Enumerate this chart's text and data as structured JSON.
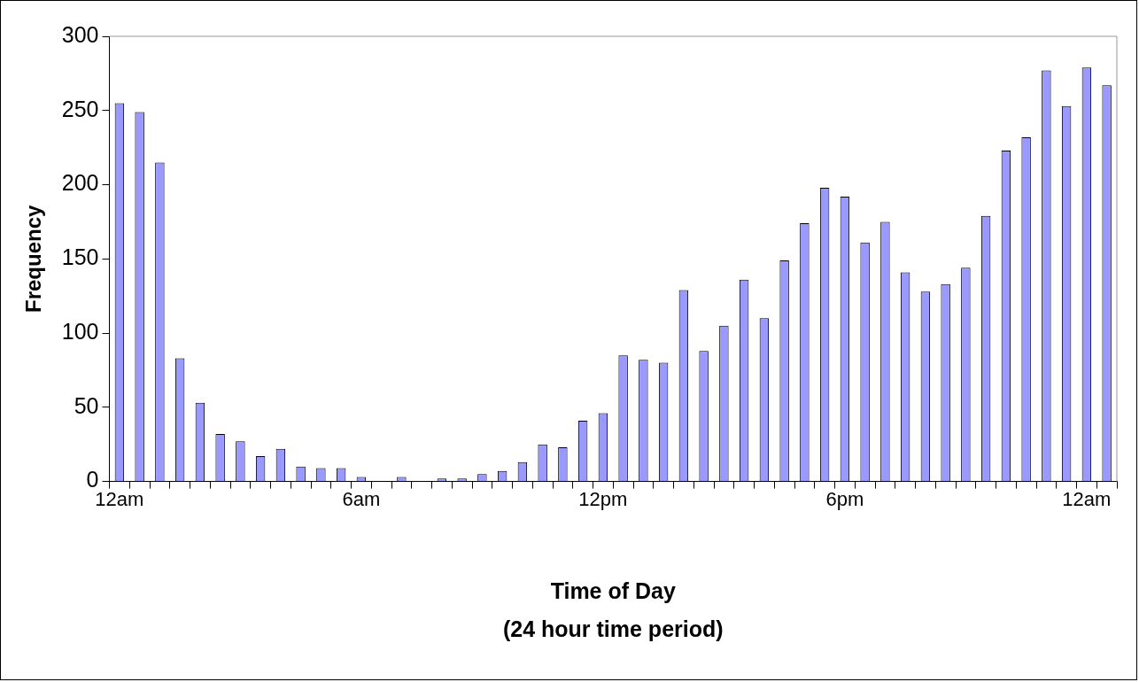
{
  "chart_data": {
    "type": "bar",
    "xlabel": "Time of Day\n(24 hour time period)",
    "ylabel": "Frequency",
    "categories": [
      "12am",
      null,
      null,
      null,
      null,
      null,
      null,
      null,
      null,
      null,
      null,
      null,
      "6am",
      null,
      null,
      null,
      null,
      null,
      null,
      null,
      null,
      null,
      null,
      null,
      "12pm",
      null,
      null,
      null,
      null,
      null,
      null,
      null,
      null,
      null,
      null,
      null,
      "6pm",
      null,
      null,
      null,
      null,
      null,
      null,
      null,
      null,
      null,
      null,
      null,
      "12am",
      null
    ],
    "values": [
      255,
      249,
      215,
      83,
      53,
      32,
      27,
      17,
      22,
      10,
      9,
      9,
      3,
      0,
      3,
      0,
      2,
      2,
      5,
      7,
      13,
      25,
      23,
      41,
      46,
      85,
      82,
      80,
      129,
      88,
      105,
      136,
      110,
      149,
      174,
      198,
      192,
      161,
      175,
      141,
      128,
      133,
      144,
      179,
      223,
      232,
      277,
      253,
      279,
      267
    ],
    "color": "#9999ff",
    "ylim": [
      0,
      300
    ],
    "yticks": [
      0,
      50,
      100,
      150,
      200,
      250,
      300
    ],
    "grid": false,
    "legend": false
  }
}
